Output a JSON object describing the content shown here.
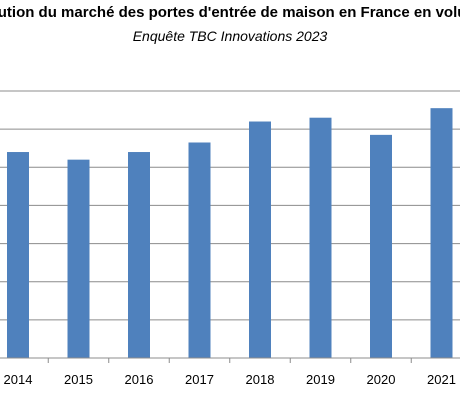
{
  "chart_data": {
    "type": "bar",
    "title": "lution du marché des portes d'entrée de maison en France en volu",
    "subtitle": "Enquête TBC Innovations 2023",
    "categories": [
      "2014",
      "2015",
      "2016",
      "2017",
      "2018",
      "2019",
      "2020",
      "2021"
    ],
    "values": [
      5.4,
      5.2,
      5.4,
      5.65,
      6.2,
      6.3,
      5.85,
      6.55
    ],
    "ylim": [
      0,
      7
    ],
    "grid": true,
    "legend": "none",
    "colors": {
      "bar": "#4F81BD",
      "grid": "#8C8C8C",
      "axis": "#8C8C8C",
      "text": "#000000"
    }
  }
}
